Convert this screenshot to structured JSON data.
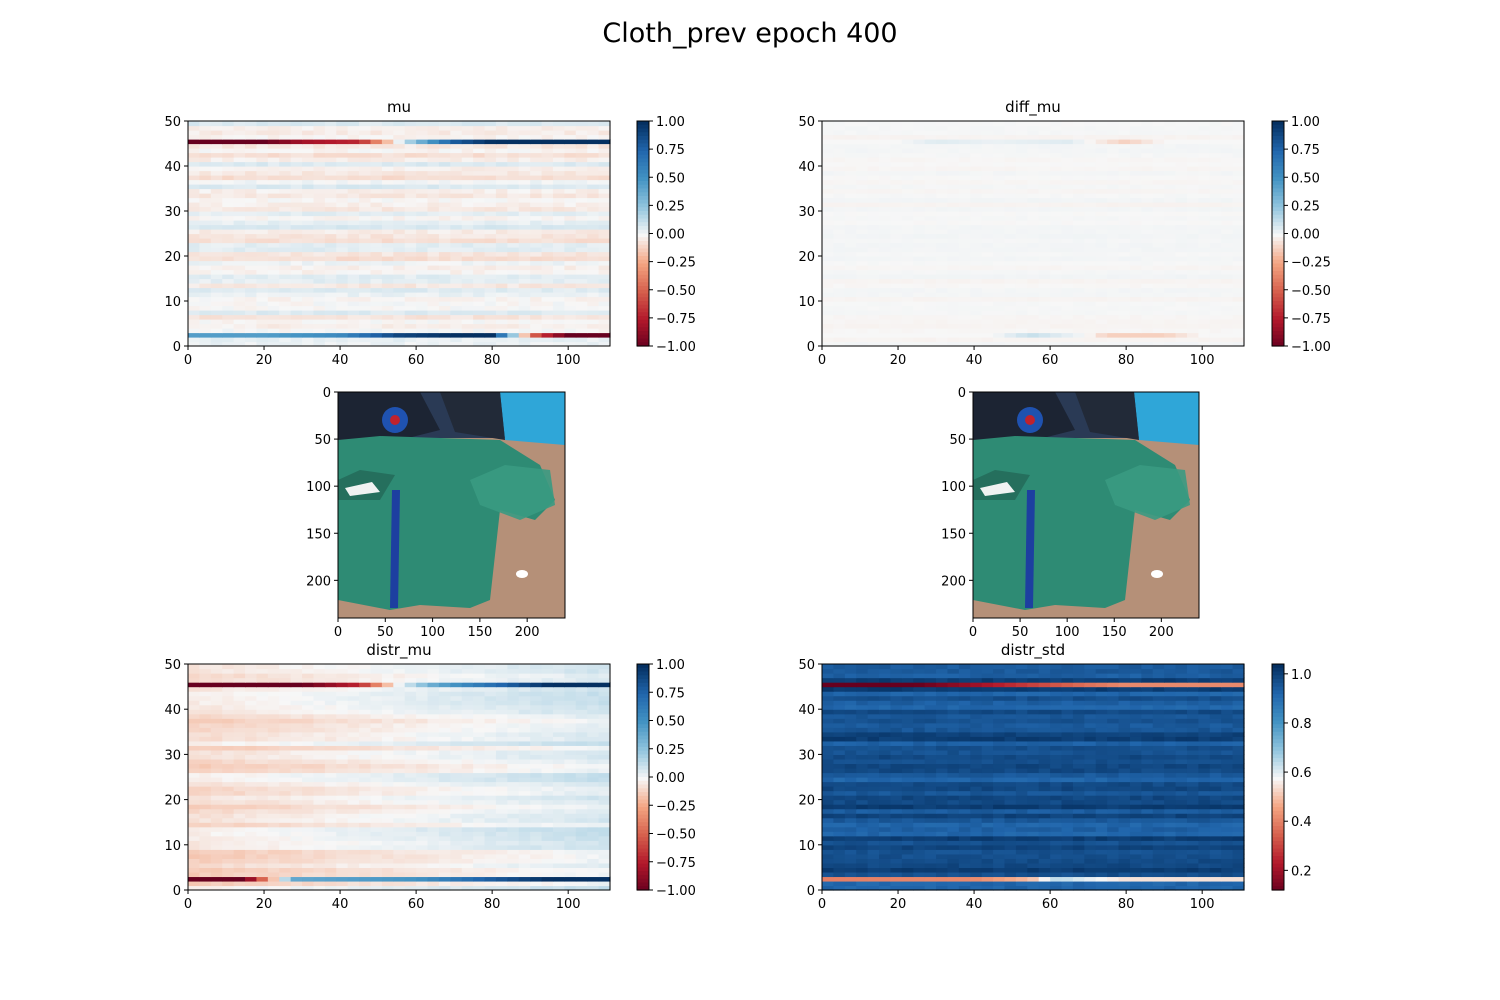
{
  "figure": {
    "title": "Cloth_prev epoch 400"
  },
  "chart_data": [
    {
      "id": "mu",
      "type": "heatmap",
      "title": "mu",
      "colormap": "RdBu",
      "xlim": [
        0,
        111
      ],
      "ylim": [
        0,
        50
      ],
      "xticks": [
        0,
        20,
        40,
        60,
        80,
        100
      ],
      "yticks": [
        0,
        10,
        20,
        30,
        40,
        50
      ],
      "colorbar": {
        "vmin": -1.0,
        "vmax": 1.0,
        "ticks": [
          "1.00",
          "0.75",
          "0.50",
          "0.25",
          "0.00",
          "−0.25",
          "−0.50",
          "−0.75",
          "−1.00"
        ]
      },
      "rows_count": 50,
      "cols_count": 111,
      "background_value": 0.0,
      "background_noise": 0.08,
      "highlight_rows": [
        {
          "row": 45,
          "x": [
            0,
            20,
            30,
            45,
            55,
            60,
            70,
            80,
            111
          ],
          "values": [
            -1.0,
            -1.0,
            -0.8,
            -0.7,
            0.0,
            0.3,
            0.8,
            1.0,
            1.0
          ]
        },
        {
          "row": 2,
          "x": [
            0,
            20,
            40,
            55,
            70,
            80,
            85,
            92,
            100,
            111
          ],
          "values": [
            0.45,
            0.45,
            0.55,
            0.9,
            1.0,
            1.0,
            0.3,
            -0.6,
            -1.0,
            -1.0
          ]
        }
      ]
    },
    {
      "id": "diff_mu",
      "type": "heatmap",
      "title": "diff_mu",
      "colormap": "RdBu",
      "xlim": [
        0,
        111
      ],
      "ylim": [
        0,
        50
      ],
      "xticks": [
        0,
        20,
        40,
        60,
        80,
        100
      ],
      "yticks": [
        0,
        10,
        20,
        30,
        40,
        50
      ],
      "colorbar": {
        "vmin": -1.0,
        "vmax": 1.0,
        "ticks": [
          "1.00",
          "0.75",
          "0.50",
          "0.25",
          "0.00",
          "−0.25",
          "−0.50",
          "−0.75",
          "−1.00"
        ]
      },
      "rows_count": 50,
      "cols_count": 111,
      "background_value": 0.0,
      "background_noise": 0.015,
      "highlight_rows": [
        {
          "row": 45,
          "x": [
            0,
            20,
            30,
            45,
            65,
            80,
            90,
            111
          ],
          "values": [
            0.0,
            0.0,
            0.06,
            0.03,
            0.06,
            -0.12,
            0.0,
            0.0
          ]
        },
        {
          "row": 2,
          "x": [
            0,
            45,
            55,
            70,
            75,
            90,
            100,
            111
          ],
          "values": [
            0.0,
            0.0,
            0.12,
            0.0,
            -0.12,
            -0.12,
            0.0,
            0.0
          ]
        }
      ]
    },
    {
      "id": "image1",
      "type": "image",
      "xlim": [
        0,
        240
      ],
      "ylim": [
        0,
        240
      ],
      "xticks": [
        0,
        50,
        100,
        150,
        200
      ],
      "yticks": [
        0,
        50,
        100,
        150,
        200
      ],
      "y_inverted": true
    },
    {
      "id": "image2",
      "type": "image",
      "xlim": [
        0,
        240
      ],
      "ylim": [
        0,
        240
      ],
      "xticks": [
        0,
        50,
        100,
        150,
        200
      ],
      "yticks": [
        0,
        50,
        100,
        150,
        200
      ],
      "y_inverted": true
    },
    {
      "id": "distr_mu",
      "type": "heatmap",
      "title": "distr_mu",
      "colormap": "RdBu",
      "xlim": [
        0,
        111
      ],
      "ylim": [
        0,
        50
      ],
      "xticks": [
        0,
        20,
        40,
        60,
        80,
        100
      ],
      "yticks": [
        0,
        10,
        20,
        30,
        40,
        50
      ],
      "colorbar": {
        "vmin": -1.0,
        "vmax": 1.0,
        "ticks": [
          "1.00",
          "0.75",
          "0.50",
          "0.25",
          "0.00",
          "−0.25",
          "−0.50",
          "−0.75",
          "−1.00"
        ]
      },
      "rows_count": 50,
      "cols_count": 111,
      "background_value": 0.0,
      "background_noise": 0.06,
      "background_gradient": [
        -0.08,
        0.08
      ],
      "highlight_rows": [
        {
          "row": 45,
          "x": [
            0,
            30,
            45,
            55,
            65,
            80,
            95,
            111
          ],
          "values": [
            -1.0,
            -1.0,
            -0.7,
            0.0,
            0.4,
            0.7,
            1.0,
            1.0
          ]
        },
        {
          "row": 2,
          "x": [
            0,
            15,
            22,
            28,
            60,
            80,
            95,
            111
          ],
          "values": [
            -1.0,
            -1.0,
            -0.2,
            0.4,
            0.5,
            0.8,
            1.0,
            1.0
          ]
        }
      ]
    },
    {
      "id": "distr_std",
      "type": "heatmap",
      "title": "distr_std",
      "colormap": "RdBu",
      "xlim": [
        0,
        111
      ],
      "ylim": [
        0,
        50
      ],
      "xticks": [
        0,
        20,
        40,
        60,
        80,
        100
      ],
      "yticks": [
        0,
        10,
        20,
        30,
        40,
        50
      ],
      "colorbar": {
        "vmin": 0.12,
        "vmax": 1.04,
        "ticks": [
          "1.0",
          "0.8",
          "0.6",
          "0.4",
          "0.2"
        ]
      },
      "rows_count": 50,
      "cols_count": 111,
      "background_value": 0.97,
      "background_noise": 0.05,
      "highlight_rows": [
        {
          "row": 45,
          "x": [
            0,
            25,
            40,
            55,
            70,
            80,
            111
          ],
          "values": [
            0.12,
            0.12,
            0.2,
            0.3,
            0.38,
            0.42,
            0.42
          ]
        },
        {
          "row": 2,
          "x": [
            0,
            40,
            55,
            62,
            70,
            80,
            111
          ],
          "values": [
            0.4,
            0.42,
            0.5,
            0.65,
            0.6,
            0.55,
            0.55
          ]
        }
      ]
    }
  ]
}
